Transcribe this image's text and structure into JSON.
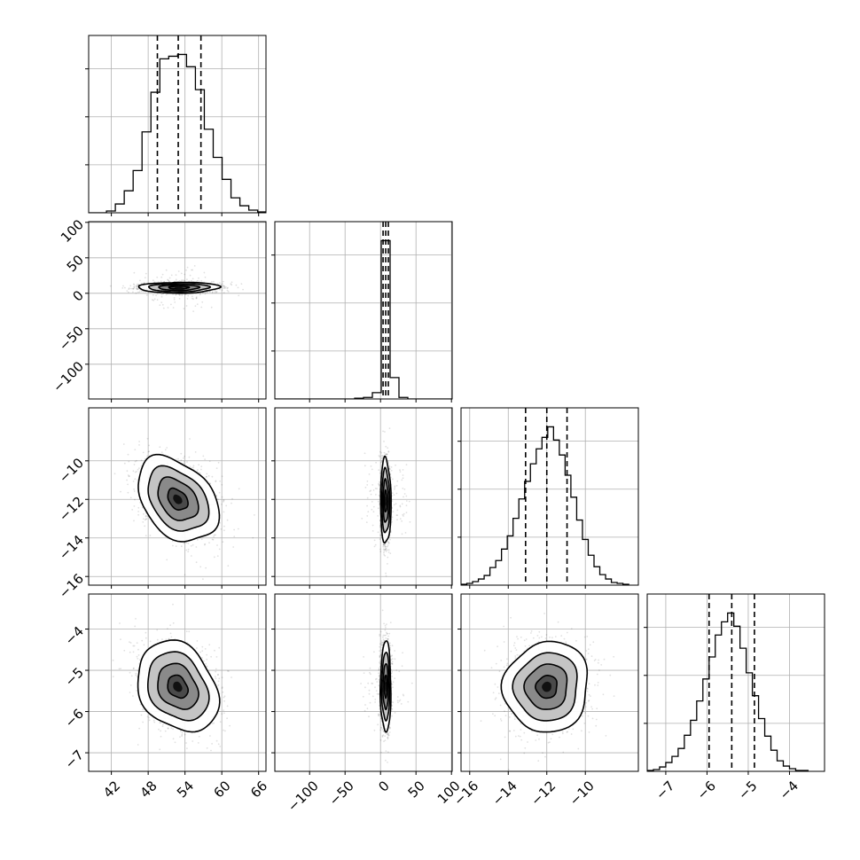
{
  "chart_data": {
    "type": "corner",
    "parameters": [
      {
        "range": [
          38.3,
          67.2
        ],
        "ticks": [
          42,
          48,
          54,
          60,
          66
        ],
        "tick_labels": [
          "42",
          "48",
          "54",
          "60",
          "66"
        ],
        "quantiles": [
          49.5,
          52.9,
          56.6
        ],
        "histogram": {
          "edges": [
            38.3,
            39.75,
            41.2,
            42.65,
            44.1,
            45.55,
            47.0,
            48.45,
            49.9,
            51.35,
            52.8,
            54.25,
            55.7,
            57.15,
            58.6,
            60.05,
            61.5,
            62.95,
            64.4,
            65.85,
            67.2
          ],
          "counts": [
            0,
            0,
            2,
            10,
            25,
            48,
            92,
            137,
            175,
            178,
            180,
            166,
            140,
            95,
            63,
            38,
            17,
            8,
            3,
            1
          ]
        },
        "grid": true
      },
      {
        "range": [
          -149,
          101
        ],
        "ticks": [
          -100,
          -50,
          0,
          50,
          100
        ],
        "tick_labels": [
          "−100",
          "−50",
          "0",
          "50",
          "100"
        ],
        "quantiles": [
          3.6,
          7.3,
          11.0
        ],
        "histogram": {
          "edges": [
            -149,
            -136.5,
            -124,
            -111.5,
            -99,
            -86.5,
            -74,
            -61.5,
            -49,
            -36.5,
            -24,
            -11.5,
            1,
            13.5,
            26,
            38.5,
            51,
            63.5,
            76,
            88.5,
            101
          ],
          "counts": [
            0,
            0,
            0,
            0,
            0,
            0,
            0,
            0,
            0,
            1,
            2,
            8,
            200,
            27,
            2,
            0,
            0,
            0,
            0,
            0
          ]
        },
        "grid": true
      },
      {
        "range": [
          -16.45,
          -7.25
        ],
        "ticks": [
          -16,
          -14,
          -12,
          -10
        ],
        "tick_labels": [
          "−16",
          "−14",
          "−12",
          "−10"
        ],
        "quantiles": [
          -13.1,
          -12.0,
          -10.95
        ],
        "histogram": {
          "edges": [
            -16.45,
            -16.15,
            -15.85,
            -15.55,
            -15.25,
            -14.95,
            -14.65,
            -14.35,
            -14.05,
            -13.75,
            -13.45,
            -13.15,
            -12.85,
            -12.55,
            -12.25,
            -11.95,
            -11.65,
            -11.35,
            -11.05,
            -10.75,
            -10.45,
            -10.15,
            -9.85,
            -9.55,
            -9.25,
            -8.95,
            -8.65,
            -8.35,
            -8.05,
            -7.75
          ],
          "counts": [
            1,
            2,
            4,
            7,
            11,
            20,
            28,
            41,
            56,
            76,
            98,
            118,
            138,
            155,
            168,
            180,
            165,
            148,
            125,
            100,
            74,
            52,
            34,
            21,
            12,
            7,
            3,
            2,
            1
          ]
        },
        "grid": true
      },
      {
        "range": [
          -7.45,
          -3.15
        ],
        "ticks": [
          -7,
          -6,
          -5,
          -4
        ],
        "tick_labels": [
          "−7",
          "−6",
          "−5",
          "−4"
        ],
        "quantiles": [
          -5.95,
          -5.4,
          -4.85
        ],
        "histogram": {
          "edges": [
            -7.45,
            -7.3,
            -7.15,
            -7.0,
            -6.85,
            -6.7,
            -6.55,
            -6.4,
            -6.25,
            -6.1,
            -5.95,
            -5.8,
            -5.65,
            -5.5,
            -5.35,
            -5.2,
            -5.05,
            -4.9,
            -4.75,
            -4.6,
            -4.45,
            -4.3,
            -4.15,
            -4.0,
            -3.85,
            -3.7,
            -3.55
          ],
          "counts": [
            1,
            2,
            5,
            10,
            17,
            26,
            41,
            58,
            80,
            105,
            130,
            155,
            170,
            180,
            165,
            140,
            112,
            86,
            60,
            40,
            24,
            12,
            6,
            3,
            1,
            1
          ]
        },
        "grid": true
      }
    ],
    "pairs": [
      {
        "row": 1,
        "col": 0,
        "center": [
          53.0,
          8.0
        ],
        "sigma": [
          3.3,
          3.8
        ],
        "rho": 0.05
      },
      {
        "row": 2,
        "col": 0,
        "center": [
          52.8,
          -12.0
        ],
        "sigma": [
          3.3,
          1.1
        ],
        "rho": -0.35
      },
      {
        "row": 2,
        "col": 1,
        "center": [
          7.3,
          -12.1
        ],
        "sigma": [
          3.7,
          1.1
        ],
        "rho": -0.05
      },
      {
        "row": 3,
        "col": 0,
        "center": [
          52.8,
          -5.4
        ],
        "sigma": [
          3.3,
          0.55
        ],
        "rho": -0.25
      },
      {
        "row": 3,
        "col": 1,
        "center": [
          7.3,
          -5.4
        ],
        "sigma": [
          3.7,
          0.55
        ],
        "rho": 0.0
      },
      {
        "row": 3,
        "col": 2,
        "center": [
          -12.0,
          -5.4
        ],
        "sigma": [
          1.1,
          0.55
        ],
        "rho": 0.05
      }
    ],
    "contour_levels": [
      0.5,
      1.0,
      1.5,
      2.0
    ],
    "grid": true,
    "title": "",
    "xlabel": "",
    "ylabel": ""
  }
}
